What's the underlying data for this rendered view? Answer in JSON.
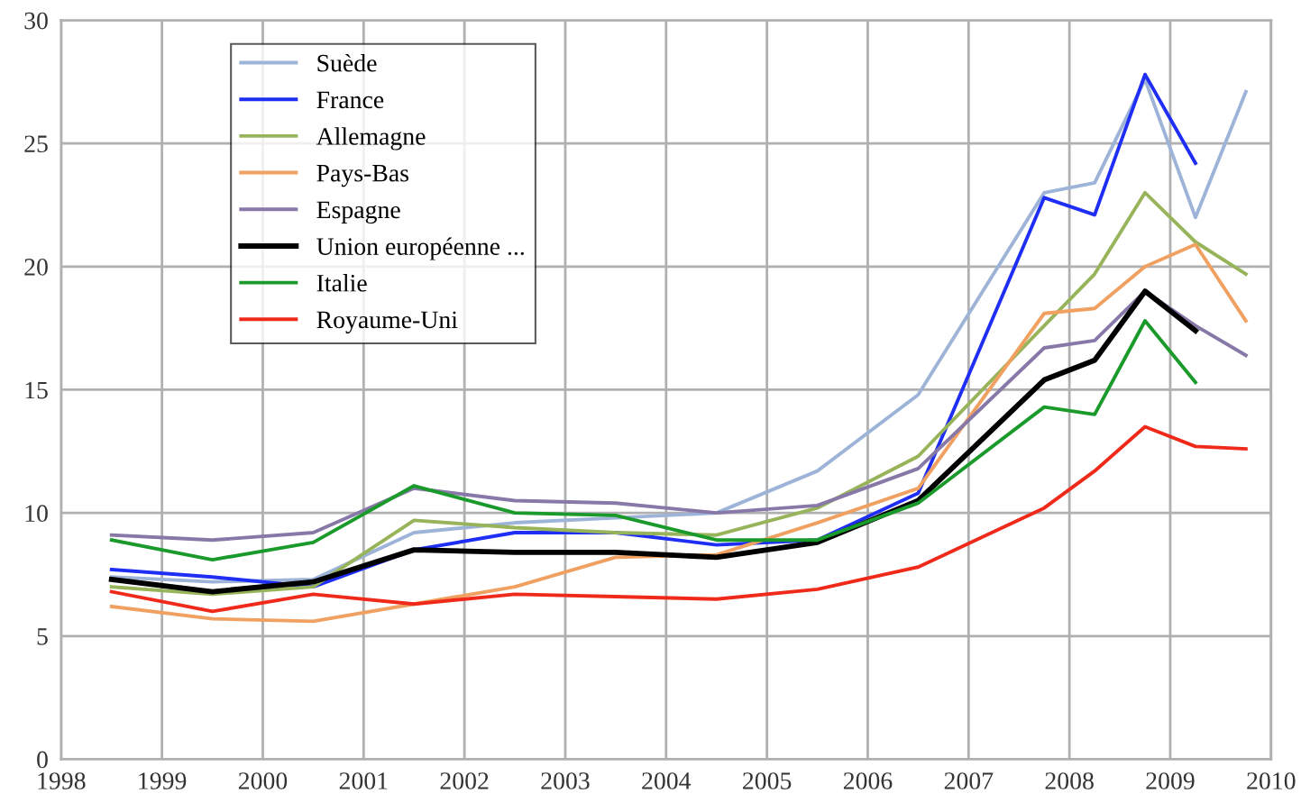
{
  "chart_data": {
    "type": "line",
    "x": [
      1998.5,
      1999.5,
      2000.5,
      2001.5,
      2002.5,
      2003.5,
      2004.5,
      2005.5,
      2006.5,
      2007.75,
      2008.25,
      2008.75,
      2009.25,
      2009.75
    ],
    "series": [
      {
        "name": "Suède",
        "color": "#9db4d8",
        "values": [
          7.4,
          7.2,
          7.3,
          9.2,
          9.6,
          9.8,
          10.0,
          11.7,
          14.8,
          23.0,
          23.4,
          27.6,
          22.0,
          27.1
        ]
      },
      {
        "name": "France",
        "color": "#1f2ef5",
        "values": [
          7.7,
          7.4,
          7.0,
          8.5,
          9.2,
          9.2,
          8.7,
          8.9,
          10.8,
          22.8,
          22.1,
          27.8,
          24.2,
          null
        ]
      },
      {
        "name": "Allemagne",
        "color": "#98b45a",
        "values": [
          7.0,
          6.7,
          7.0,
          9.7,
          9.4,
          9.2,
          9.1,
          10.2,
          12.3,
          17.6,
          19.7,
          23.0,
          21.0,
          19.7
        ]
      },
      {
        "name": "Pays-Bas",
        "color": "#f0a060",
        "values": [
          6.2,
          5.7,
          5.6,
          6.3,
          7.0,
          8.2,
          8.3,
          9.6,
          11.0,
          18.1,
          18.3,
          20.0,
          20.9,
          17.8
        ]
      },
      {
        "name": "Espagne",
        "color": "#8878a8",
        "values": [
          9.1,
          8.9,
          9.2,
          11.0,
          10.5,
          10.4,
          10.0,
          10.3,
          11.8,
          16.7,
          17.0,
          19.0,
          17.6,
          16.4
        ]
      },
      {
        "name": "Union européenne ...",
        "color": "#000000",
        "values": [
          7.3,
          6.8,
          7.2,
          8.5,
          8.4,
          8.4,
          8.2,
          8.8,
          10.5,
          15.4,
          16.2,
          19.0,
          17.4,
          null
        ]
      },
      {
        "name": "Italie",
        "color": "#1a9a2a",
        "values": [
          8.9,
          8.1,
          8.8,
          11.1,
          10.0,
          9.9,
          8.9,
          8.9,
          10.4,
          14.3,
          14.0,
          17.8,
          15.3,
          null
        ]
      },
      {
        "name": "Royaume-Uni",
        "color": "#f02a1a",
        "values": [
          6.8,
          6.0,
          6.7,
          6.3,
          6.7,
          6.6,
          6.5,
          6.9,
          7.8,
          10.2,
          11.7,
          13.5,
          12.7,
          12.6
        ]
      }
    ],
    "xlim": [
      1998,
      2010
    ],
    "xticks": [
      1998,
      1999,
      2000,
      2001,
      2002,
      2003,
      2004,
      2005,
      2006,
      2007,
      2008,
      2009,
      2010
    ],
    "ylim": [
      0,
      30
    ],
    "yticks": [
      0,
      5,
      10,
      15,
      20,
      25,
      30
    ],
    "grid": true,
    "legend": "top left"
  }
}
